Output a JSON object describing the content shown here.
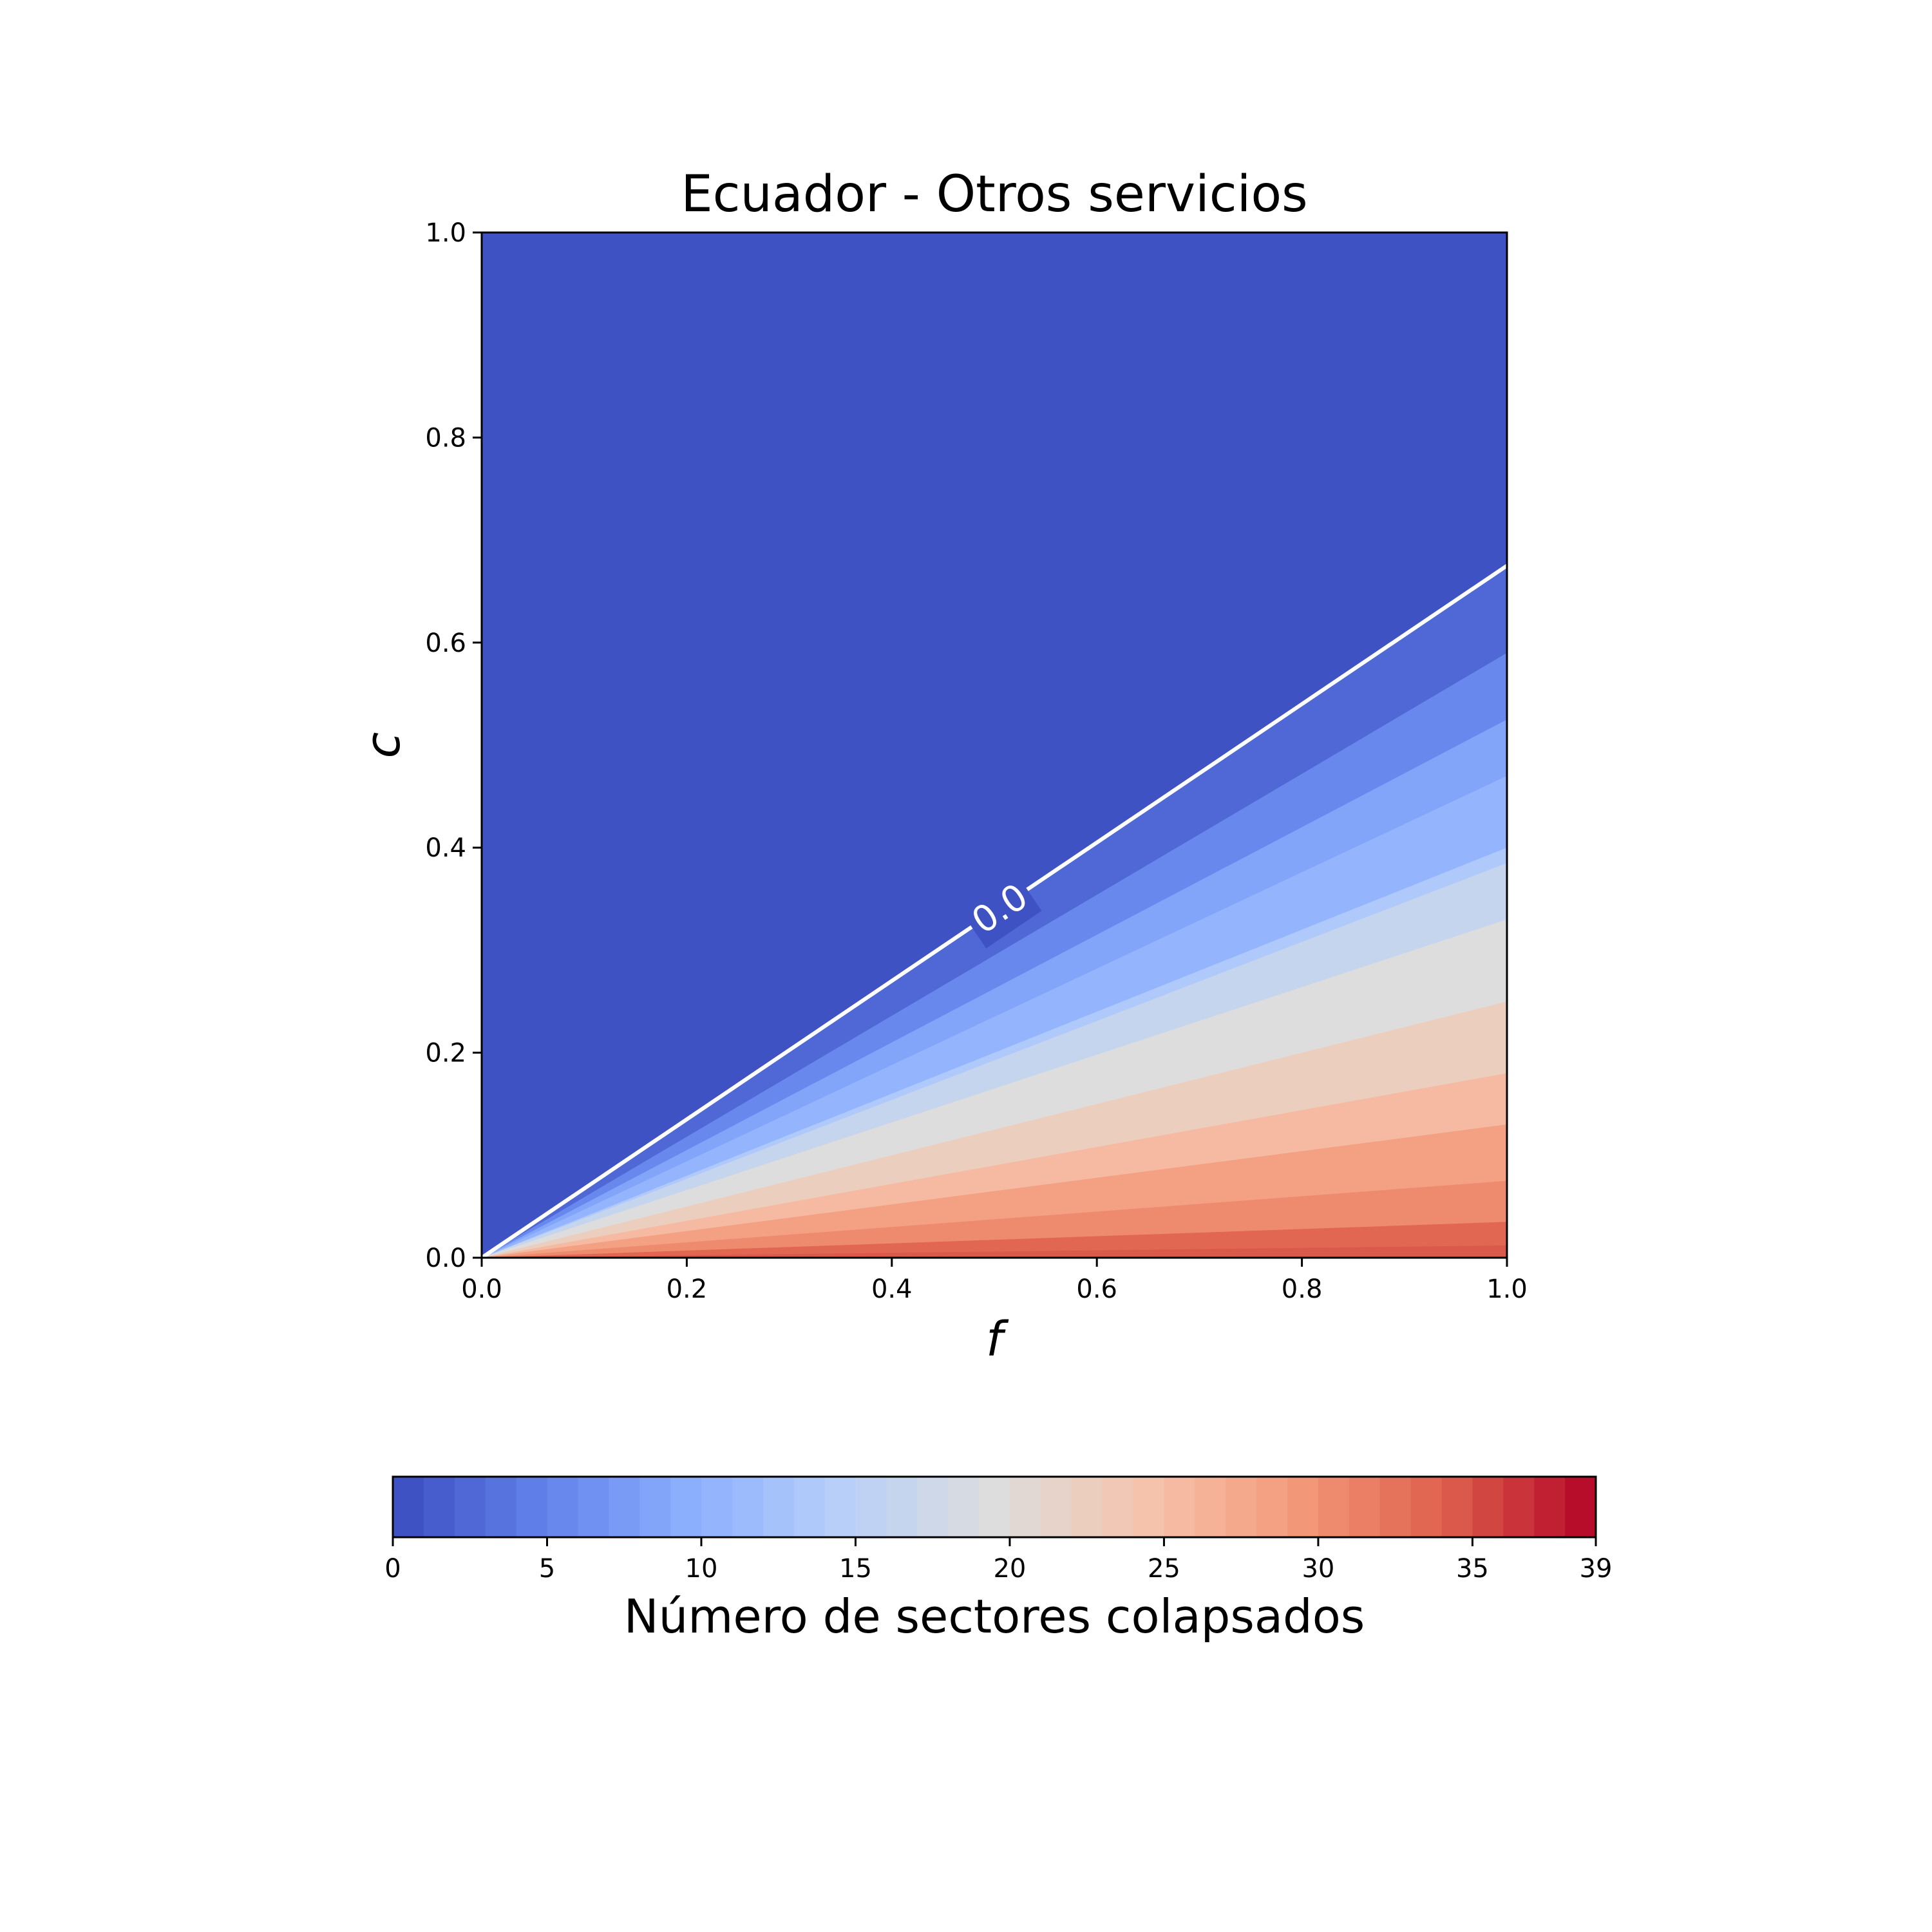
{
  "chart_data": {
    "type": "heatmap",
    "title": "Ecuador - Otros servicios",
    "xlabel": "f",
    "ylabel": "c",
    "xlim": [
      0.0,
      1.0
    ],
    "ylim": [
      0.0,
      1.0
    ],
    "x_ticks": [
      "0.0",
      "0.2",
      "0.4",
      "0.6",
      "0.8",
      "1.0"
    ],
    "y_ticks": [
      "0.0",
      "0.2",
      "0.4",
      "0.6",
      "0.8",
      "1.0"
    ],
    "grid": false,
    "contour": {
      "level_label": "0.0",
      "line_color": "#ffffff",
      "points": [
        [
          0.0,
          0.0
        ],
        [
          0.2,
          0.135
        ],
        [
          0.4,
          0.27
        ],
        [
          0.6,
          0.405
        ],
        [
          0.8,
          0.54
        ],
        [
          1.0,
          0.675
        ]
      ]
    },
    "boundaries": [
      {
        "value": 0,
        "c_at_f1": 0.675
      },
      {
        "value": 2,
        "c_at_f1": 0.59
      },
      {
        "value": 5,
        "c_at_f1": 0.525
      },
      {
        "value": 8,
        "c_at_f1": 0.47
      },
      {
        "value": 10,
        "c_at_f1": 0.4
      },
      {
        "value": 13,
        "c_at_f1": 0.385
      },
      {
        "value": 16,
        "c_at_f1": 0.33
      },
      {
        "value": 19,
        "c_at_f1": 0.25
      },
      {
        "value": 22,
        "c_at_f1": 0.18
      },
      {
        "value": 25,
        "c_at_f1": 0.13
      },
      {
        "value": 28,
        "c_at_f1": 0.075
      },
      {
        "value": 31,
        "c_at_f1": 0.035
      },
      {
        "value": 33,
        "c_at_f1": 0.012
      },
      {
        "value": 34,
        "c_at_f1": 0.0
      }
    ],
    "colorbar": {
      "label": "Número de sectores colapsados",
      "min": 0,
      "max": 39,
      "ticks": [
        "0",
        "5",
        "10",
        "15",
        "20",
        "25",
        "30",
        "35",
        "39"
      ],
      "tick_values": [
        0,
        5,
        10,
        15,
        20,
        25,
        30,
        35,
        39
      ],
      "n_colors": 39,
      "colormap": "coolwarm",
      "orientation": "horizontal"
    }
  }
}
